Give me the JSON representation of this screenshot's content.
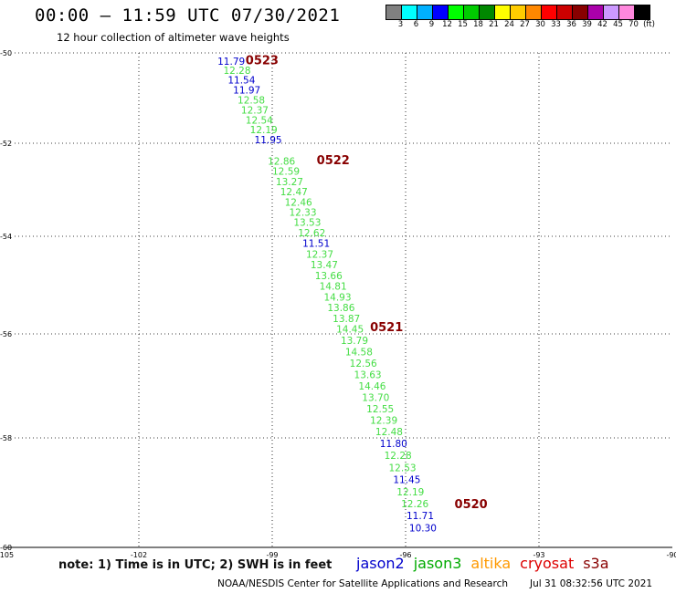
{
  "header": {
    "title": "00:00 – 11:59 UTC 07/30/2021",
    "subtitle": "12 hour collection of altimeter wave heights"
  },
  "legend": {
    "colors": [
      "#808080",
      "#00ffff",
      "#00b0ff",
      "#0000ff",
      "#00ff00",
      "#00cc00",
      "#008800",
      "#ffff00",
      "#ffcc00",
      "#ff8800",
      "#ff0000",
      "#cc0000",
      "#880000",
      "#aa00aa",
      "#cc99ff",
      "#ff88dd",
      "#000000"
    ],
    "labels": [
      "3",
      "6",
      "9",
      "12",
      "15",
      "18",
      "21",
      "24",
      "27",
      "30",
      "33",
      "36",
      "39",
      "42",
      "45",
      "70",
      "(ft)"
    ]
  },
  "footer": {
    "note": "note: 1) Time is in UTC; 2) SWH is in feet",
    "satellites": [
      {
        "name": "jason2",
        "color": "#0000cc"
      },
      {
        "name": "jason3",
        "color": "#00aa00"
      },
      {
        "name": "altika",
        "color": "#ff9900"
      },
      {
        "name": "cryosat",
        "color": "#dd0000"
      },
      {
        "name": "s3a",
        "color": "#880000"
      }
    ],
    "credit": "NOAA/NESDIS Center for Satellite Applications and Research",
    "timestamp": "Jul 31 08:32:56 UTC 2021"
  },
  "map": {
    "x_ticks": [
      "-105",
      "-102",
      "-99",
      "-96",
      "-93",
      "-90"
    ],
    "y_ticks": [
      "-50",
      "-52",
      "-54",
      "-56",
      "-58",
      "-60"
    ],
    "x_values": [
      -105,
      -102,
      -99,
      -96,
      -93,
      -90
    ],
    "y_values": [
      -50,
      -52,
      -54,
      -56,
      -58,
      -60
    ],
    "grid": true
  },
  "chart_data": {
    "type": "scatter",
    "xlim": [
      -105,
      -90
    ],
    "ylim": [
      -60,
      -50
    ],
    "time_labels": [
      {
        "text": "0523",
        "lon": -99.6,
        "lat": -50.15
      },
      {
        "text": "0522",
        "lon": -98.0,
        "lat": -52.35
      },
      {
        "text": "0521",
        "lon": -96.8,
        "lat": -55.85
      },
      {
        "text": "0520",
        "lon": -94.9,
        "lat": -59.2
      }
    ],
    "points": [
      {
        "v": "11.79",
        "lat": -50.18,
        "lon": -100.23,
        "c": "blue"
      },
      {
        "v": "12.28",
        "lat": -50.38,
        "lon": -100.1,
        "c": "green"
      },
      {
        "v": "11.54",
        "lat": -50.6,
        "lon": -100.0,
        "c": "blue"
      },
      {
        "v": "11.97",
        "lat": -50.82,
        "lon": -99.88,
        "c": "blue"
      },
      {
        "v": "12.58",
        "lat": -51.04,
        "lon": -99.78,
        "c": "green"
      },
      {
        "v": "12.37",
        "lat": -51.26,
        "lon": -99.7,
        "c": "green"
      },
      {
        "v": "12.54",
        "lat": -51.48,
        "lon": -99.6,
        "c": "green"
      },
      {
        "v": "12.19",
        "lat": -51.7,
        "lon": -99.5,
        "c": "green"
      },
      {
        "v": "11.95",
        "lat": -51.92,
        "lon": -99.4,
        "c": "blue"
      },
      {
        "v": "12.86",
        "lat": -52.38,
        "lon": -99.1,
        "c": "green"
      },
      {
        "v": "12.59",
        "lat": -52.6,
        "lon": -99.0,
        "c": "green"
      },
      {
        "v": "13.27",
        "lat": -52.82,
        "lon": -98.92,
        "c": "green"
      },
      {
        "v": "12.47",
        "lat": -53.04,
        "lon": -98.82,
        "c": "green"
      },
      {
        "v": "12.46",
        "lat": -53.26,
        "lon": -98.72,
        "c": "green"
      },
      {
        "v": "12.33",
        "lat": -53.48,
        "lon": -98.62,
        "c": "green"
      },
      {
        "v": "13.53",
        "lat": -53.7,
        "lon": -98.52,
        "c": "green"
      },
      {
        "v": "12.62",
        "lat": -53.92,
        "lon": -98.42,
        "c": "green"
      },
      {
        "v": "11.51",
        "lat": -54.14,
        "lon": -98.32,
        "c": "blue"
      },
      {
        "v": "12.37",
        "lat": -54.36,
        "lon": -98.24,
        "c": "green"
      },
      {
        "v": "13.47",
        "lat": -54.58,
        "lon": -98.14,
        "c": "green"
      },
      {
        "v": "13.66",
        "lat": -54.8,
        "lon": -98.04,
        "c": "green"
      },
      {
        "v": "14.81",
        "lat": -55.02,
        "lon": -97.94,
        "c": "green"
      },
      {
        "v": "14.93",
        "lat": -55.24,
        "lon": -97.84,
        "c": "green"
      },
      {
        "v": "13.86",
        "lat": -55.46,
        "lon": -97.76,
        "c": "green"
      },
      {
        "v": "13.87",
        "lat": -55.68,
        "lon": -97.64,
        "c": "green"
      },
      {
        "v": "14.45",
        "lat": -55.9,
        "lon": -97.56,
        "c": "green"
      },
      {
        "v": "13.79",
        "lat": -56.12,
        "lon": -97.46,
        "c": "green"
      },
      {
        "v": "14.58",
        "lat": -56.34,
        "lon": -97.36,
        "c": "green"
      },
      {
        "v": "12.56",
        "lat": -56.56,
        "lon": -97.26,
        "c": "green"
      },
      {
        "v": "13.63",
        "lat": -56.78,
        "lon": -97.16,
        "c": "green"
      },
      {
        "v": "14.46",
        "lat": -57.0,
        "lon": -97.06,
        "c": "green"
      },
      {
        "v": "13.70",
        "lat": -57.22,
        "lon": -96.98,
        "c": "green"
      },
      {
        "v": "12.55",
        "lat": -57.44,
        "lon": -96.88,
        "c": "green"
      },
      {
        "v": "12.39",
        "lat": -57.66,
        "lon": -96.8,
        "c": "green"
      },
      {
        "v": "12.48",
        "lat": -57.88,
        "lon": -96.68,
        "c": "green"
      },
      {
        "v": "11.80",
        "lat": -58.1,
        "lon": -96.58,
        "c": "blue"
      },
      {
        "v": "12.28",
        "lat": -58.32,
        "lon": -96.48,
        "c": "green"
      },
      {
        "v": "12.53",
        "lat": -58.54,
        "lon": -96.38,
        "c": "green"
      },
      {
        "v": "11.45",
        "lat": -58.76,
        "lon": -96.28,
        "c": "blue"
      },
      {
        "v": "12.19",
        "lat": -58.98,
        "lon": -96.2,
        "c": "green"
      },
      {
        "v": "12.26",
        "lat": -59.2,
        "lon": -96.1,
        "c": "green"
      },
      {
        "v": "11.71",
        "lat": -59.42,
        "lon": -95.98,
        "c": "blue"
      },
      {
        "v": "10.30",
        "lat": -59.64,
        "lon": -95.92,
        "c": "blue"
      }
    ]
  }
}
